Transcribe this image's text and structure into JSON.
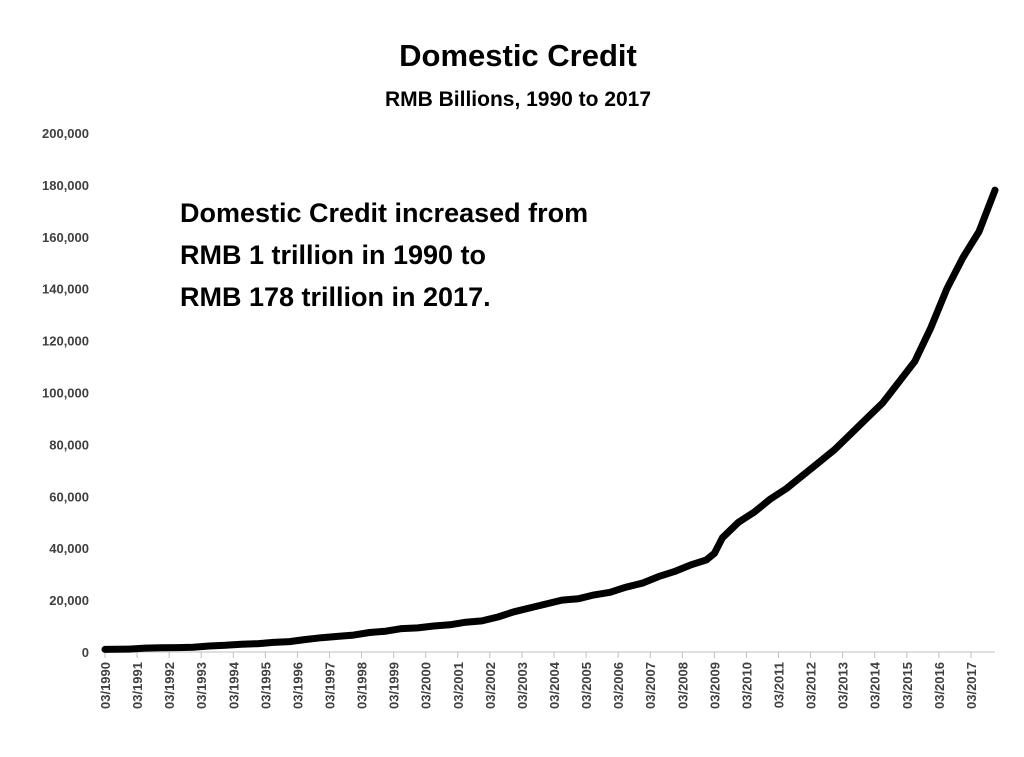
{
  "chart_data": {
    "type": "line",
    "title": "Domestic Credit",
    "subtitle": "RMB Billions, 1990 to 2017",
    "annotation": [
      "Domestic Credit increased from",
      "RMB 1 trillion in 1990 to",
      "RMB 178 trillion in 2017."
    ],
    "ylim": [
      0,
      200000
    ],
    "y_ticks": [
      "0",
      "20,000",
      "40,000",
      "60,000",
      "80,000",
      "100,000",
      "120,000",
      "140,000",
      "160,000",
      "180,000",
      "200,000"
    ],
    "x_ticks": [
      "03/1990",
      "03/1991",
      "03/1992",
      "03/1993",
      "03/1994",
      "03/1995",
      "03/1996",
      "03/1997",
      "03/1998",
      "03/1999",
      "03/2000",
      "03/2001",
      "03/2002",
      "03/2003",
      "03/2004",
      "03/2005",
      "03/2006",
      "03/2007",
      "03/2008",
      "03/2009",
      "03/2010",
      "03/2011",
      "03/2012",
      "03/2013",
      "03/2014",
      "03/2015",
      "03/2016",
      "03/2017"
    ],
    "xlim": [
      "1990-03",
      "2017-12"
    ],
    "grid": false,
    "legend": "none",
    "line_color": "#000000",
    "series": [
      {
        "x": [
          "1990-03",
          "1990-12",
          "1991-06",
          "1991-12",
          "1992-06",
          "1992-12",
          "1993-06",
          "1993-12",
          "1994-06",
          "1994-12",
          "1995-06",
          "1995-12",
          "1996-06",
          "1996-12",
          "1997-06",
          "1997-12",
          "1998-06",
          "1998-12",
          "1999-06",
          "1999-12",
          "2000-06",
          "2000-12",
          "2001-06",
          "2001-12",
          "2002-06",
          "2002-12",
          "2003-06",
          "2003-12",
          "2004-06",
          "2004-12",
          "2005-06",
          "2005-12",
          "2006-06",
          "2006-12",
          "2007-06",
          "2007-12",
          "2008-06",
          "2008-12",
          "2009-03",
          "2009-06",
          "2009-12",
          "2010-06",
          "2010-12",
          "2011-06",
          "2011-12",
          "2012-06",
          "2012-12",
          "2013-06",
          "2013-12",
          "2014-06",
          "2014-12",
          "2015-06",
          "2015-12",
          "2016-06",
          "2016-12",
          "2017-06",
          "2017-12"
        ],
        "values": [
          1000,
          1100,
          1500,
          1600,
          1700,
          1800,
          2300,
          2600,
          3000,
          3200,
          3700,
          4000,
          4800,
          5500,
          6000,
          6500,
          7500,
          8000,
          9000,
          9300,
          10000,
          10500,
          11500,
          12000,
          13500,
          15500,
          17000,
          18500,
          20000,
          20500,
          22000,
          23000,
          25000,
          26500,
          29000,
          31000,
          33500,
          35500,
          38000,
          44000,
          50000,
          54000,
          59000,
          63000,
          68000,
          73000,
          78000,
          84000,
          90000,
          96000,
          104000,
          112000,
          125000,
          140000,
          152000,
          162000,
          178000
        ]
      }
    ]
  }
}
